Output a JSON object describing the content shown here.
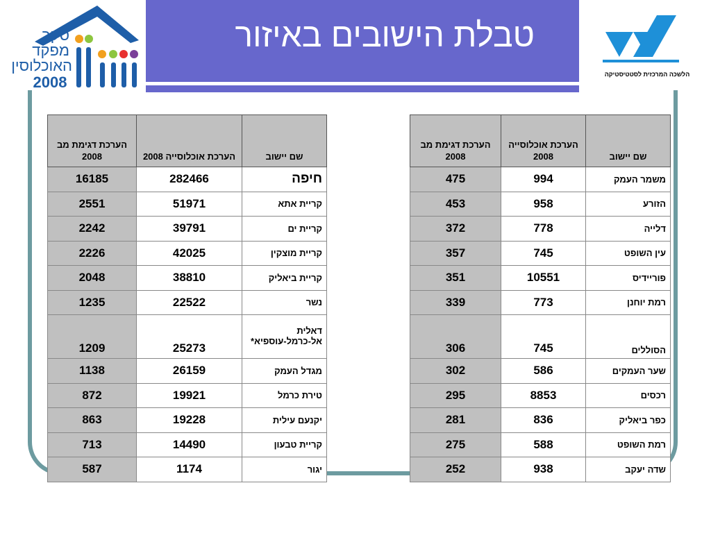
{
  "header": {
    "title": "טבלת הישובים באיזור",
    "logo_left": {
      "lines": [
        "סקר",
        "מפקד",
        "האוכלוסין"
      ],
      "year": "2008"
    },
    "logo_right": {
      "caption": "הלשכה המרכזית לסטטיסטיקה",
      "brand_color": "#1e90d8"
    }
  },
  "colors": {
    "title_bar": "#6767cc",
    "frame": "#6d9ba0",
    "header_cell": "#c0c0c0"
  },
  "table_left": {
    "headers": {
      "name": "שם יישוב",
      "population": "הערכת אוכלוסייה 2008",
      "sample": "הערכת דגימת מב 2008"
    },
    "rows": [
      {
        "name": "חיפה",
        "population": "282466",
        "sample": "16185"
      },
      {
        "name": "קריית אתא",
        "population": "51971",
        "sample": "2551"
      },
      {
        "name": "קריית ים",
        "population": "39791",
        "sample": "2242"
      },
      {
        "name": "קריית מוצקין",
        "population": "42025",
        "sample": "2226"
      },
      {
        "name": "קריית ביאליק",
        "population": "38810",
        "sample": "2048"
      },
      {
        "name": "נשר",
        "population": "22522",
        "sample": "1235"
      },
      {
        "name": "דאלית אל-כרמל-עוספיא*",
        "population": "25273",
        "sample": "1209"
      },
      {
        "name": "מגדל העמק",
        "population": "26159",
        "sample": "1138"
      },
      {
        "name": "טירת כרמל",
        "population": "19921",
        "sample": "872"
      },
      {
        "name": "יקנעם עילית",
        "population": "19228",
        "sample": "863"
      },
      {
        "name": "קריית טבעון",
        "population": "14490",
        "sample": "713"
      },
      {
        "name": "יגור",
        "population": "1174",
        "sample": "587"
      }
    ]
  },
  "table_right": {
    "headers": {
      "name": "שם יישוב",
      "population": "הערכת אוכלוסייה 2008",
      "sample": "הערכת דגימת מב 2008"
    },
    "rows": [
      {
        "name": "משמר העמק",
        "population": "994",
        "sample": "475"
      },
      {
        "name": "הזורע",
        "population": "958",
        "sample": "453"
      },
      {
        "name": "דלייה",
        "population": "778",
        "sample": "372"
      },
      {
        "name": "עין השופט",
        "population": "745",
        "sample": "357"
      },
      {
        "name": "פוריידיס",
        "population": "10551",
        "sample": "351"
      },
      {
        "name": "רמת יוחנן",
        "population": "773",
        "sample": "339"
      },
      {
        "name": "הסוללים",
        "population": "745",
        "sample": "306"
      },
      {
        "name": "שער העמקים",
        "population": "586",
        "sample": "302"
      },
      {
        "name": "רכסים",
        "population": "8853",
        "sample": "295"
      },
      {
        "name": "כפר ביאליק",
        "population": "836",
        "sample": "281"
      },
      {
        "name": "רמת השופט",
        "population": "588",
        "sample": "275"
      },
      {
        "name": "שדה יעקב",
        "population": "938",
        "sample": "252"
      }
    ]
  }
}
